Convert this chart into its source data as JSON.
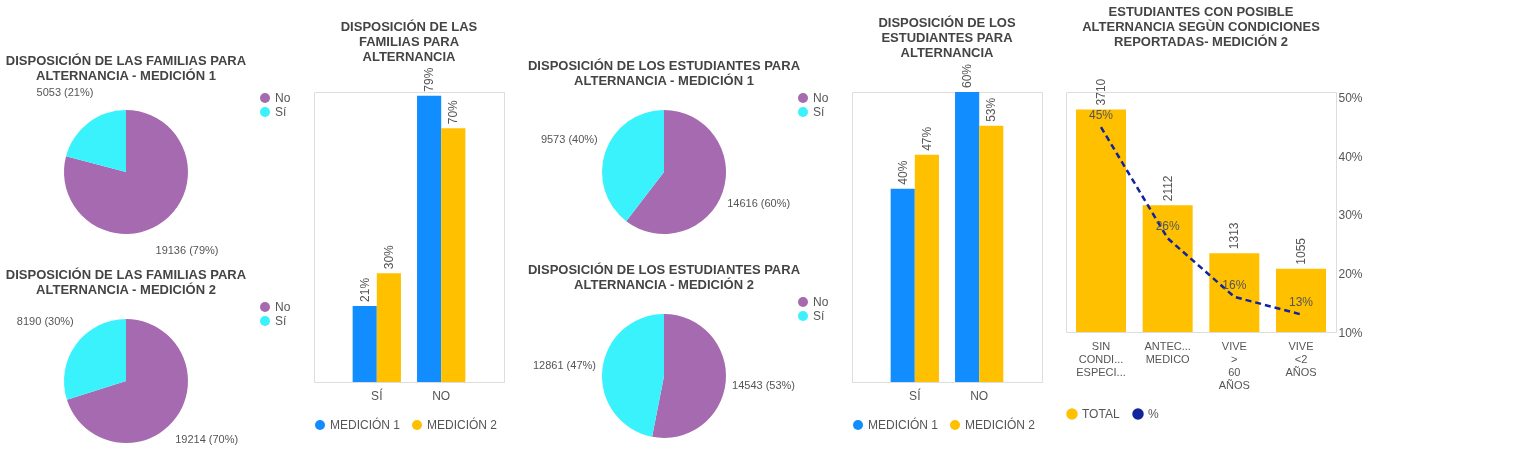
{
  "chart_data": [
    {
      "type": "pie",
      "title": "DISPOSICIÓN DE LAS FAMILIAS PARA ALTERNANCIA - MEDICIÓN 1",
      "categories": [
        "No",
        "Sí"
      ],
      "values": [
        19136,
        5053
      ],
      "colors": [
        "#a66ab0",
        "#3af2fc"
      ],
      "value_labels": [
        "19136 (79%)",
        "5053 (21%)"
      ],
      "legend": "right"
    },
    {
      "type": "pie",
      "title": "DISPOSICIÓN DE LAS FAMILIAS PARA ALTERNANCIA - MEDICIÓN 2",
      "categories": [
        "No",
        "Sí"
      ],
      "values": [
        19214,
        8190
      ],
      "colors": [
        "#a66ab0",
        "#3af2fc"
      ],
      "value_labels": [
        "19214 (70%)",
        "8190 (30%)"
      ],
      "legend": "right"
    },
    {
      "type": "bar",
      "title": "DISPOSICIÓN DE LAS FAMILIAS PARA ALTERNANCIA",
      "categories": [
        "SÍ",
        "NO"
      ],
      "legend": "bottom",
      "series": [
        {
          "name": "MEDICIÓN 1",
          "color": "#118dff",
          "values": [
            21,
            79
          ],
          "value_labels": [
            "21%",
            "79%"
          ]
        },
        {
          "name": "MEDICIÓN 2",
          "color": "#ffc000",
          "values": [
            30,
            70
          ],
          "value_labels": [
            "30%",
            "70%"
          ]
        }
      ]
    },
    {
      "type": "pie",
      "title": "DISPOSICIÓN DE LOS ESTUDIANTES PARA ALTERNANCIA - MEDICIÓN 1",
      "categories": [
        "No",
        "Sí"
      ],
      "values": [
        14616,
        9573
      ],
      "colors": [
        "#a66ab0",
        "#3af2fc"
      ],
      "value_labels": [
        "14616 (60%)",
        "9573 (40%)"
      ],
      "legend": "right"
    },
    {
      "type": "pie",
      "title": "DISPOSICIÓN DE LOS ESTUDIANTES PARA ALTERNANCIA - MEDICIÓN 2",
      "categories": [
        "No",
        "Sí"
      ],
      "values": [
        14543,
        12861
      ],
      "colors": [
        "#a66ab0",
        "#3af2fc"
      ],
      "value_labels": [
        "14543 (53%)",
        "12861 (47%)"
      ],
      "legend": "right"
    },
    {
      "type": "bar",
      "title": "DISPOSICIÓN DE LOS ESTUDIANTES PARA ALTERNANCIA",
      "categories": [
        "SÍ",
        "NO"
      ],
      "legend": "bottom",
      "series": [
        {
          "name": "MEDICIÓN 1",
          "color": "#118dff",
          "values": [
            40,
            60
          ],
          "value_labels": [
            "40%",
            "60%"
          ]
        },
        {
          "name": "MEDICIÓN 2",
          "color": "#ffc000",
          "values": [
            47,
            53
          ],
          "value_labels": [
            "47%",
            "53%"
          ]
        }
      ]
    },
    {
      "type": "bar",
      "title": "ESTUDIANTES CON POSIBLE ALTERNANCIA SEGÙN CONDICIONES REPORTADAS- MEDICIÓN 2",
      "categories": [
        "SIN CONDI... ESPECI...",
        "ANTEC... MEDICO",
        "VIVE > 60 AÑOS",
        "VIVE <2 AÑOS"
      ],
      "legend": "bottom",
      "y2lim": [
        10,
        51
      ],
      "y2ticks": [
        {
          "value": 10,
          "label": "10%"
        },
        {
          "value": 20,
          "label": "20%"
        },
        {
          "value": 30,
          "label": "30%"
        },
        {
          "value": 40,
          "label": "40%"
        },
        {
          "value": 50,
          "label": "50%"
        }
      ],
      "series": [
        {
          "name": "TOTAL",
          "type": "bar",
          "color": "#ffc000",
          "values": [
            3710,
            2112,
            1313,
            1055
          ],
          "value_labels": [
            "3710",
            "2112",
            "1313",
            "1055"
          ]
        },
        {
          "name": "%",
          "type": "line",
          "axis": "y2",
          "color": "#12239e",
          "line_style": "dashed",
          "marker": "none",
          "values": [
            45,
            26,
            16,
            13
          ],
          "value_labels": [
            "45%",
            "26%",
            "16%",
            "13%"
          ]
        }
      ]
    }
  ]
}
